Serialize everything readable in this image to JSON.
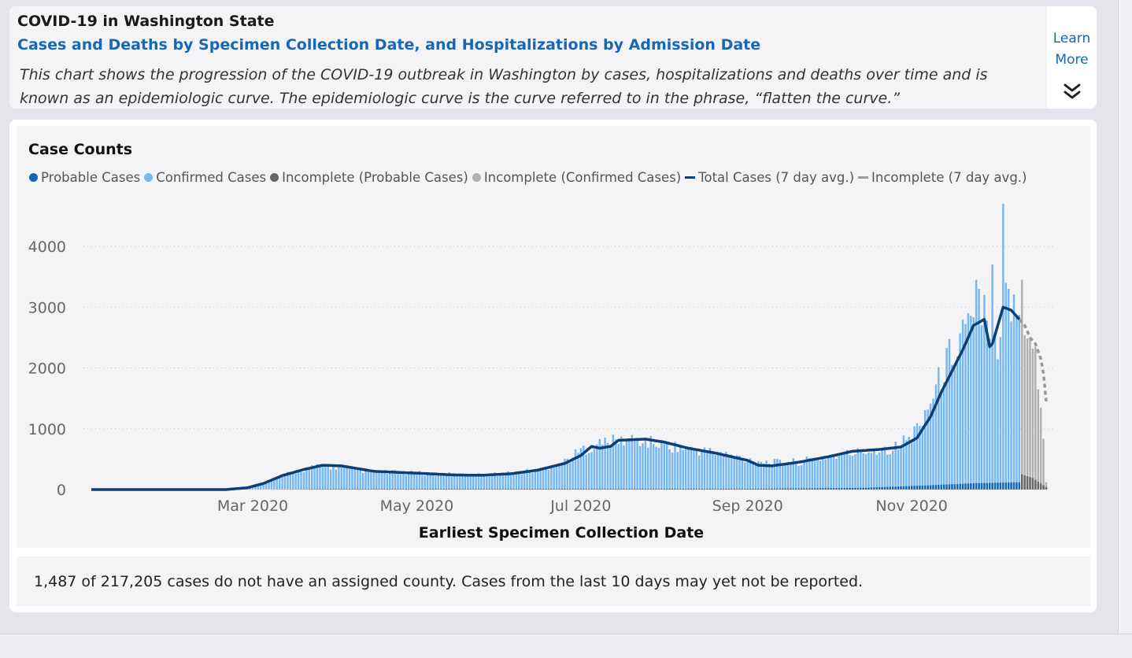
{
  "header": {
    "title": "COVID-19 in Washington State",
    "subtitle": "Cases and Deaths by Specimen Collection Date, and Hospitalizations by Admission Date",
    "description": "This chart shows the progression of the COVID-19 outbreak in Washington by cases, hospitalizations and deaths over time and is known as an epidemiologic curve. The epidemiologic curve is the curve referred to in the phrase, “flatten the curve.”",
    "learn_more_line1": "Learn",
    "learn_more_line2": "More",
    "learn_more_icon": "double-chevron-down-icon"
  },
  "chart_title": "Case Counts",
  "footnote": "1,487 of 217,205 cases do not have an assigned county. Cases from the last 10 days may yet not be reported.",
  "colors": {
    "probable": "#1266b5",
    "confirmed": "#75b8f2",
    "incomplete_probable": "#666666",
    "incomplete_confirmed": "#b0b0b0",
    "avg_line": "#0d3f72",
    "incomplete_avg": "#9a9a9a",
    "link": "#1867b4"
  },
  "chart_data": {
    "type": "bar",
    "xlabel": "Earliest Specimen Collection Date",
    "ylabel": "",
    "ylim": [
      0,
      4700
    ],
    "yticks": [
      0,
      1000,
      2000,
      3000,
      4000
    ],
    "grid": "horizontal dotted",
    "legend_position": "top-left",
    "x_tick_labels": [
      "Mar 2020",
      "May 2020",
      "Jul 2020",
      "Sep 2020",
      "Nov 2020"
    ],
    "x_tick_dates": [
      "2020-03-01",
      "2020-05-01",
      "2020-07-01",
      "2020-09-01",
      "2020-11-01"
    ],
    "date_start": "2020-01-01",
    "date_end": "2020-12-21",
    "incomplete_from": "2020-12-12",
    "series": [
      {
        "name": "Probable Cases",
        "kind": "bar",
        "color_key": "probable",
        "anchors": [
          [
            "2020-01-01",
            0
          ],
          [
            "2020-03-05",
            0
          ],
          [
            "2020-04-01",
            8
          ],
          [
            "2020-06-15",
            10
          ],
          [
            "2020-09-01",
            12
          ],
          [
            "2020-10-15",
            28
          ],
          [
            "2020-11-10",
            75
          ],
          [
            "2020-11-25",
            105
          ],
          [
            "2020-12-11",
            120
          ]
        ]
      },
      {
        "name": "Confirmed Cases",
        "kind": "bar",
        "color_key": "confirmed",
        "anchors": [
          [
            "2020-01-01",
            0
          ],
          [
            "2020-02-20",
            0
          ],
          [
            "2020-02-28",
            25
          ],
          [
            "2020-03-05",
            90
          ],
          [
            "2020-03-12",
            230
          ],
          [
            "2020-03-20",
            330
          ],
          [
            "2020-03-27",
            390
          ],
          [
            "2020-04-03",
            360
          ],
          [
            "2020-04-15",
            290
          ],
          [
            "2020-05-01",
            270
          ],
          [
            "2020-05-15",
            245
          ],
          [
            "2020-05-25",
            240
          ],
          [
            "2020-06-05",
            270
          ],
          [
            "2020-06-15",
            320
          ],
          [
            "2020-06-25",
            460
          ],
          [
            "2020-07-01",
            640
          ],
          [
            "2020-07-10",
            780
          ],
          [
            "2020-07-20",
            820
          ],
          [
            "2020-08-01",
            740
          ],
          [
            "2020-08-10",
            660
          ],
          [
            "2020-08-20",
            610
          ],
          [
            "2020-09-01",
            500
          ],
          [
            "2020-09-10",
            440
          ],
          [
            "2020-09-20",
            450
          ],
          [
            "2020-10-01",
            540
          ],
          [
            "2020-10-15",
            630
          ],
          [
            "2020-10-25",
            680
          ],
          [
            "2020-11-01",
            880
          ],
          [
            "2020-11-08",
            1450
          ],
          [
            "2020-11-15",
            2200
          ],
          [
            "2020-11-22",
            2650
          ],
          [
            "2020-11-27",
            2800
          ],
          [
            "2020-11-30",
            2350
          ],
          [
            "2020-12-04",
            2550
          ],
          [
            "2020-12-06",
            3000
          ],
          [
            "2020-12-11",
            2850
          ]
        ],
        "spikes": [
          [
            "2020-12-05",
            4700
          ],
          [
            "2020-12-01",
            3700
          ],
          [
            "2020-11-25",
            3450
          ],
          [
            "2020-12-06",
            3400
          ],
          [
            "2020-11-26",
            3300
          ],
          [
            "2020-11-28",
            3200
          ],
          [
            "2020-12-07",
            3300
          ],
          [
            "2020-11-20",
            2800
          ],
          [
            "2020-11-22",
            2900
          ]
        ]
      },
      {
        "name": "Incomplete (Probable Cases)",
        "kind": "bar",
        "color_key": "incomplete_probable",
        "anchors": [
          [
            "2020-12-12",
            250
          ],
          [
            "2020-12-16",
            190
          ],
          [
            "2020-12-21",
            40
          ]
        ]
      },
      {
        "name": "Incomplete (Confirmed Cases)",
        "kind": "bar",
        "color_key": "incomplete_confirmed",
        "anchors": [
          [
            "2020-12-12",
            3400
          ],
          [
            "2020-12-13",
            2800
          ],
          [
            "2020-12-15",
            2600
          ],
          [
            "2020-12-17",
            2300
          ],
          [
            "2020-12-19",
            1300
          ],
          [
            "2020-12-20",
            800
          ],
          [
            "2020-12-21",
            120
          ]
        ]
      },
      {
        "name": "Total Cases (7 day avg.)",
        "kind": "line",
        "color_key": "avg_line",
        "anchors": [
          [
            "2020-01-01",
            0
          ],
          [
            "2020-02-20",
            0
          ],
          [
            "2020-02-28",
            30
          ],
          [
            "2020-03-05",
            100
          ],
          [
            "2020-03-12",
            230
          ],
          [
            "2020-03-20",
            330
          ],
          [
            "2020-03-27",
            400
          ],
          [
            "2020-04-03",
            390
          ],
          [
            "2020-04-15",
            300
          ],
          [
            "2020-05-01",
            270
          ],
          [
            "2020-05-15",
            240
          ],
          [
            "2020-05-25",
            235
          ],
          [
            "2020-06-05",
            260
          ],
          [
            "2020-06-15",
            320
          ],
          [
            "2020-06-25",
            430
          ],
          [
            "2020-07-01",
            560
          ],
          [
            "2020-07-05",
            710
          ],
          [
            "2020-07-08",
            680
          ],
          [
            "2020-07-12",
            710
          ],
          [
            "2020-07-15",
            810
          ],
          [
            "2020-07-25",
            830
          ],
          [
            "2020-08-01",
            780
          ],
          [
            "2020-08-10",
            680
          ],
          [
            "2020-08-20",
            600
          ],
          [
            "2020-09-01",
            480
          ],
          [
            "2020-09-05",
            400
          ],
          [
            "2020-09-10",
            390
          ],
          [
            "2020-09-20",
            450
          ],
          [
            "2020-10-01",
            540
          ],
          [
            "2020-10-10",
            630
          ],
          [
            "2020-10-20",
            660
          ],
          [
            "2020-10-28",
            700
          ],
          [
            "2020-11-03",
            850
          ],
          [
            "2020-11-08",
            1200
          ],
          [
            "2020-11-12",
            1600
          ],
          [
            "2020-11-16",
            1950
          ],
          [
            "2020-11-20",
            2300
          ],
          [
            "2020-11-24",
            2700
          ],
          [
            "2020-11-28",
            2800
          ],
          [
            "2020-11-30",
            2350
          ],
          [
            "2020-12-01",
            2400
          ],
          [
            "2020-12-02",
            2550
          ],
          [
            "2020-12-04",
            2850
          ],
          [
            "2020-12-05",
            3000
          ],
          [
            "2020-12-08",
            2950
          ],
          [
            "2020-12-11",
            2800
          ]
        ]
      },
      {
        "name": "Incomplete (7 day avg.)",
        "kind": "line",
        "color_key": "incomplete_avg",
        "anchors": [
          [
            "2020-12-11",
            2800
          ],
          [
            "2020-12-13",
            2700
          ],
          [
            "2020-12-15",
            2500
          ],
          [
            "2020-12-17",
            2400
          ],
          [
            "2020-12-19",
            2150
          ],
          [
            "2020-12-20",
            1900
          ],
          [
            "2020-12-21",
            1450
          ]
        ]
      }
    ]
  }
}
